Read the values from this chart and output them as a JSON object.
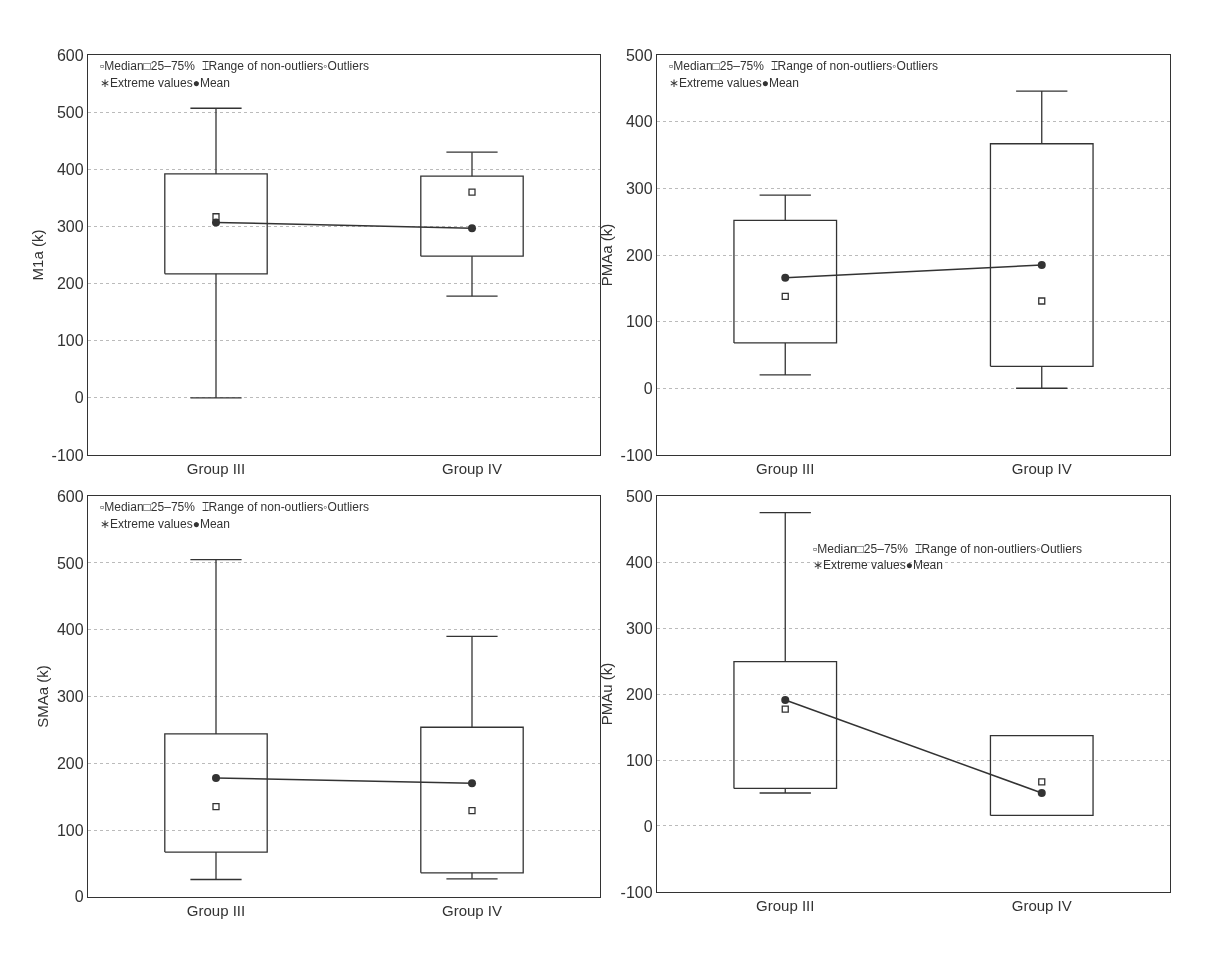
{
  "chart_data": [
    {
      "type": "box",
      "ylabel": "M1a (k)",
      "categories": [
        "Group III",
        "Group IV"
      ],
      "ylim": [
        -100,
        600
      ],
      "yticks": [
        -100,
        0,
        100,
        200,
        300,
        400,
        500,
        600
      ],
      "grid": "y",
      "color": "#333333",
      "boxes": [
        {
          "low": 0,
          "q1": 217,
          "median": 317,
          "q3": 392,
          "high": 507
        },
        {
          "low": 178,
          "q1": 248,
          "median": 360,
          "q3": 388,
          "high": 430
        }
      ],
      "series": [
        {
          "type": "line",
          "marker": "circle",
          "color": "#333333",
          "values": [
            307,
            297
          ]
        }
      ],
      "annotations": [
        "▫Median□25–75%  ⌶Range of non-outliers◦Outliers",
        "∗Extreme values●Mean"
      ]
    },
    {
      "type": "box",
      "ylabel": "PMAa (k)",
      "categories": [
        "Group III",
        "Group IV"
      ],
      "ylim": [
        -100,
        500
      ],
      "yticks": [
        -100,
        0,
        100,
        200,
        300,
        400,
        500
      ],
      "grid": "y",
      "color": "#333333",
      "boxes": [
        {
          "low": 20,
          "q1": 68,
          "median": 138,
          "q3": 252,
          "high": 290
        },
        {
          "low": 0,
          "q1": 33,
          "median": 131,
          "q3": 367,
          "high": 446
        }
      ],
      "series": [
        {
          "type": "line",
          "marker": "circle",
          "color": "#333333",
          "values": [
            166,
            185
          ]
        }
      ],
      "annotations": [
        "▫Median□25–75%  ⌶Range of non-outliers◦Outliers",
        "∗Extreme values●Mean"
      ]
    },
    {
      "type": "box",
      "ylabel": "SMAa (k)",
      "categories": [
        "Group III",
        "Group IV"
      ],
      "ylim": [
        0,
        600
      ],
      "yticks": [
        0,
        100,
        200,
        300,
        400,
        500,
        600
      ],
      "grid": "y",
      "color": "#333333",
      "boxes": [
        {
          "low": 26,
          "q1": 67,
          "median": 135,
          "q3": 244,
          "high": 505
        },
        {
          "low": 27,
          "q1": 36,
          "median": 129,
          "q3": 254,
          "high": 390
        }
      ],
      "series": [
        {
          "type": "line",
          "marker": "circle",
          "color": "#333333",
          "values": [
            178,
            170
          ]
        }
      ],
      "annotations": [
        "▫Median□25–75%  ⌶Range of non-outliers◦Outliers",
        "∗Extreme values●Mean"
      ]
    },
    {
      "type": "box",
      "ylabel": "PMAu (k)",
      "categories": [
        "Group III",
        "Group IV"
      ],
      "ylim": [
        -100,
        500
      ],
      "yticks": [
        -100,
        0,
        100,
        200,
        300,
        400,
        500
      ],
      "grid": "y",
      "color": "#333333",
      "boxes": [
        {
          "low": 50,
          "q1": 57,
          "median": 177,
          "q3": 249,
          "high": 475
        },
        {
          "low": 16,
          "q1": 16,
          "median": 67,
          "q3": 137,
          "high": 137
        }
      ],
      "series": [
        {
          "type": "line",
          "marker": "circle",
          "color": "#333333",
          "values": [
            191,
            50
          ]
        }
      ],
      "annotations": [
        "▫Median□25–75%  ⌶Range of non-outliers◦Outliers",
        "∗Extreme values●Mean"
      ]
    }
  ]
}
